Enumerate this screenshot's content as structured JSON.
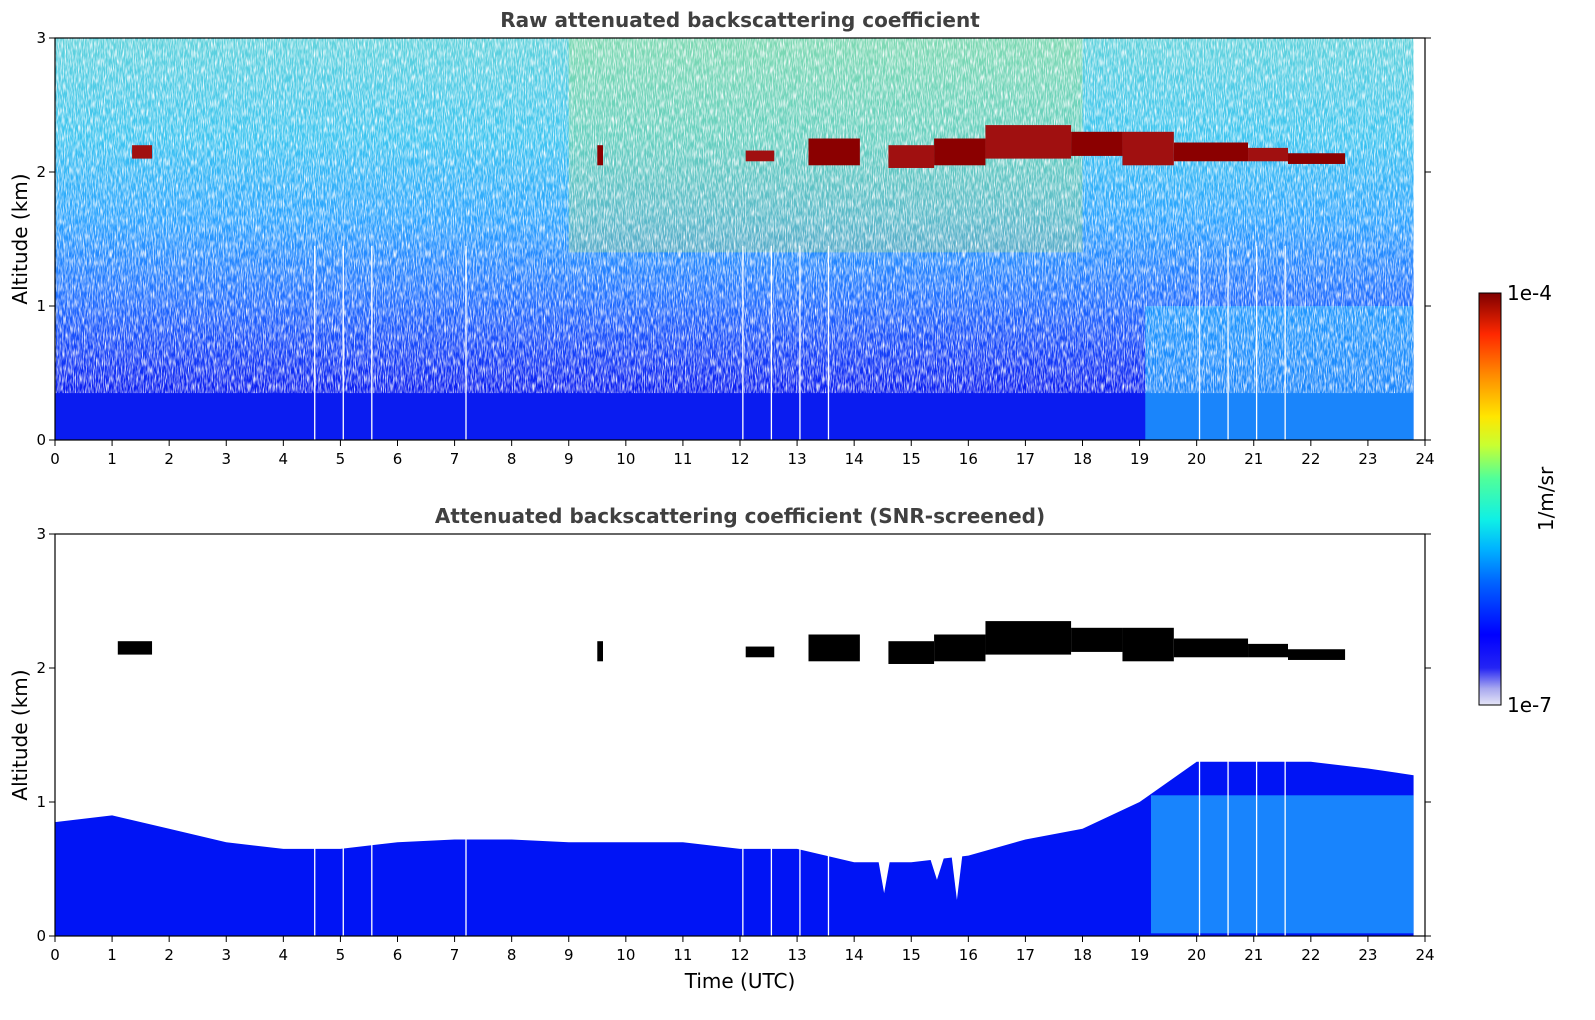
{
  "chart_data": [
    {
      "type": "heatmap",
      "title": "Raw attenuated backscattering coefficient",
      "xlabel": "",
      "ylabel": "Altitude (km)",
      "xlim": [
        0,
        24
      ],
      "ylim": [
        0,
        3
      ],
      "xticks": [
        "0",
        "1",
        "2",
        "3",
        "4",
        "5",
        "6",
        "7",
        "8",
        "9",
        "10",
        "11",
        "12",
        "13",
        "14",
        "15",
        "16",
        "17",
        "18",
        "19",
        "20",
        "21",
        "22",
        "23",
        "24"
      ],
      "yticks": [
        "0",
        "1",
        "2",
        "3"
      ],
      "data_end_time": 23.8,
      "gaps_utc": [
        4.55,
        5.05,
        5.55,
        7.2,
        12.05,
        12.55,
        13.05,
        13.55,
        20.05,
        20.55,
        21.05,
        21.55
      ],
      "features": [
        {
          "feature": "cloud layer",
          "t_start": 12.0,
          "t_end": 22.6,
          "alt_base_km": 2.0,
          "alt_top_km": 2.35
        },
        {
          "feature": "boundary layer",
          "t_start": 0,
          "t_end": 23.8,
          "alt_top_km": 0.5
        },
        {
          "feature": "noise background",
          "alt_km": [
            1.0,
            3.0
          ]
        }
      ]
    },
    {
      "type": "heatmap",
      "title": "Attenuated backscattering coefficient (SNR-screened)",
      "xlabel": "Time (UTC)",
      "ylabel": "Altitude (km)",
      "xlim": [
        0,
        24
      ],
      "ylim": [
        0,
        3
      ],
      "xticks": [
        "0",
        "1",
        "2",
        "3",
        "4",
        "5",
        "6",
        "7",
        "8",
        "9",
        "10",
        "11",
        "12",
        "13",
        "14",
        "15",
        "16",
        "17",
        "18",
        "19",
        "20",
        "21",
        "22",
        "23",
        "24"
      ],
      "yticks": [
        "0",
        "1",
        "2",
        "3"
      ],
      "data_end_time": 23.8,
      "gaps_utc": [
        4.55,
        5.05,
        5.55,
        7.2,
        12.05,
        12.55,
        13.05,
        13.55,
        20.05,
        20.55,
        21.05,
        21.55
      ],
      "boundary_layer_top_km": [
        [
          0,
          0.85
        ],
        [
          1,
          0.9
        ],
        [
          2,
          0.8
        ],
        [
          3,
          0.7
        ],
        [
          4,
          0.65
        ],
        [
          5,
          0.65
        ],
        [
          6,
          0.7
        ],
        [
          7,
          0.72
        ],
        [
          8,
          0.72
        ],
        [
          9,
          0.7
        ],
        [
          10,
          0.7
        ],
        [
          11,
          0.7
        ],
        [
          12,
          0.65
        ],
        [
          13,
          0.65
        ],
        [
          14,
          0.55
        ],
        [
          15,
          0.55
        ],
        [
          16,
          0.6
        ],
        [
          17,
          0.72
        ],
        [
          18,
          0.8
        ],
        [
          19,
          1.0
        ],
        [
          20,
          1.3
        ],
        [
          21,
          1.3
        ],
        [
          22,
          1.3
        ],
        [
          23,
          1.25
        ],
        [
          23.8,
          1.2
        ]
      ]
    }
  ],
  "colorbar": {
    "label": "1/m/sr",
    "max_label": "1e-4",
    "min_label": "1e-7",
    "scale": "log",
    "range": [
      1e-07,
      0.0001
    ],
    "colormap": "jet"
  }
}
